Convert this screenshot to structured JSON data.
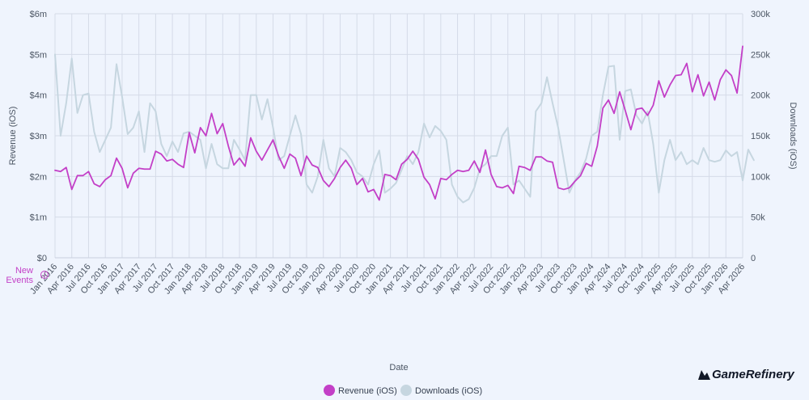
{
  "chart_data": {
    "type": "line",
    "xlabel": "Date",
    "ylabel_left": "Revenue (iOS)",
    "ylabel_right": "Downloads (iOS)",
    "left_axis": {
      "ticks": [
        0,
        1,
        2,
        3,
        4,
        5,
        6
      ],
      "tick_labels": [
        "$0",
        "$1m",
        "$2m",
        "$3m",
        "$4m",
        "$5m",
        "$6m"
      ],
      "ylim": [
        0,
        6
      ]
    },
    "right_axis": {
      "ticks": [
        0,
        50,
        100,
        150,
        200,
        250,
        300
      ],
      "tick_labels": [
        "0",
        "50k",
        "100k",
        "150k",
        "200k",
        "250k",
        "300k"
      ],
      "ylim": [
        0,
        300
      ]
    },
    "x_tick_labels": [
      "Jan 2016",
      "Apr 2016",
      "Jul 2016",
      "Oct 2016",
      "Jan 2017",
      "Apr 2017",
      "Jul 2017",
      "Oct 2017",
      "Jan 2018",
      "Apr 2018",
      "Jul 2018",
      "Oct 2018",
      "Jan 2019",
      "Apr 2019",
      "Jul 2019",
      "Oct 2019",
      "Jan 2020",
      "Apr 2020",
      "Jul 2020",
      "Oct 2020",
      "Jan 2021",
      "Apr 2021",
      "Jul 2021",
      "Oct 2021",
      "Jan 2022",
      "Apr 2022",
      "Jul 2022",
      "Oct 2022",
      "Jan 2023",
      "Apr 2023",
      "Jul 2023",
      "Oct 2023",
      "Jan 2024",
      "Apr 2024",
      "Jul 2024",
      "Oct 2024",
      "Jan 2025",
      "Apr 2025",
      "Jul 2025",
      "Oct 2025",
      "Jan 2026",
      "Apr 2026"
    ],
    "x_start": "Jan 2016",
    "grid": true,
    "legend_position": "bottom-center",
    "series": [
      {
        "name": "Revenue (iOS)",
        "axis": "left",
        "color": "#c33fc7",
        "values": [
          2.15,
          2.12,
          2.22,
          1.68,
          2.02,
          2.02,
          2.12,
          1.82,
          1.75,
          1.92,
          2.02,
          2.45,
          2.2,
          1.72,
          2.08,
          2.2,
          2.18,
          2.18,
          2.62,
          2.55,
          2.38,
          2.42,
          2.3,
          2.22,
          3.08,
          2.58,
          3.2,
          3.0,
          3.55,
          3.05,
          3.3,
          2.75,
          2.28,
          2.45,
          2.25,
          2.95,
          2.62,
          2.4,
          2.65,
          2.9,
          2.5,
          2.2,
          2.55,
          2.45,
          2.02,
          2.5,
          2.28,
          2.22,
          1.9,
          1.75,
          1.95,
          2.22,
          2.4,
          2.2,
          1.8,
          1.95,
          1.62,
          1.68,
          1.42,
          2.05,
          2.02,
          1.92,
          2.3,
          2.42,
          2.62,
          2.42,
          1.98,
          1.8,
          1.45,
          1.95,
          1.92,
          2.05,
          2.15,
          2.12,
          2.15,
          2.38,
          2.1,
          2.65,
          2.05,
          1.75,
          1.72,
          1.78,
          1.58,
          2.25,
          2.22,
          2.15,
          2.48,
          2.48,
          2.38,
          2.35,
          1.72,
          1.68,
          1.72,
          1.88,
          2.02,
          2.32,
          2.25,
          2.75,
          3.68,
          3.88,
          3.55,
          4.08,
          3.62,
          3.15,
          3.65,
          3.68,
          3.5,
          3.75,
          4.35,
          3.95,
          4.25,
          4.48,
          4.5,
          4.78,
          4.08,
          4.5,
          3.98,
          4.32,
          3.88,
          4.38,
          4.62,
          4.48,
          4.05,
          5.2
        ]
      },
      {
        "name": "Downloads (iOS)",
        "axis": "right",
        "color": "#c6d6e0",
        "values": [
          250,
          150,
          190,
          245,
          178,
          200,
          202,
          155,
          130,
          145,
          160,
          238,
          198,
          152,
          160,
          180,
          130,
          190,
          180,
          140,
          125,
          143,
          130,
          153,
          155,
          150,
          145,
          110,
          140,
          115,
          110,
          110,
          145,
          133,
          120,
          200,
          200,
          170,
          195,
          160,
          120,
          125,
          150,
          175,
          152,
          90,
          80,
          100,
          145,
          110,
          100,
          135,
          130,
          120,
          105,
          100,
          90,
          115,
          132,
          80,
          85,
          92,
          108,
          125,
          115,
          130,
          165,
          148,
          162,
          156,
          145,
          90,
          75,
          68,
          72,
          86,
          110,
          115,
          125,
          125,
          150,
          160,
          90,
          95,
          85,
          75,
          180,
          190,
          222,
          190,
          160,
          120,
          80,
          95,
          105,
          122,
          150,
          155,
          200,
          235,
          236,
          145,
          205,
          207,
          175,
          165,
          180,
          140,
          80,
          120,
          145,
          120,
          130,
          115,
          120,
          115,
          135,
          120,
          118,
          120,
          132,
          125,
          130,
          95,
          133,
          120
        ]
      }
    ],
    "events_label": [
      "New",
      "Events"
    ]
  },
  "legend": {
    "items": [
      {
        "label": "Revenue (iOS)",
        "color": "#c33fc7"
      },
      {
        "label": "Downloads (iOS)",
        "color": "#c6d6e0"
      }
    ]
  },
  "brand": {
    "name": "GameRefinery"
  },
  "icons": {
    "events_info": "info-icon",
    "brand_logo": "game-refinery-logo"
  }
}
